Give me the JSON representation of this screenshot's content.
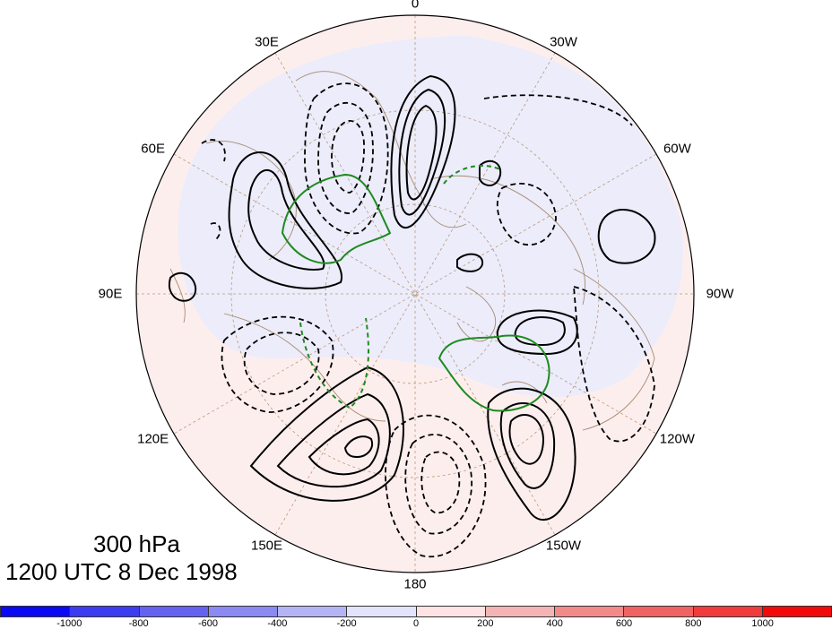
{
  "map": {
    "longitude_labels": [
      {
        "text": "0",
        "deg": 0
      },
      {
        "text": "30W",
        "deg": 30
      },
      {
        "text": "60W",
        "deg": 60
      },
      {
        "text": "90W",
        "deg": 90
      },
      {
        "text": "120W",
        "deg": 120
      },
      {
        "text": "150W",
        "deg": 150
      },
      {
        "text": "180",
        "deg": 180
      },
      {
        "text": "150E",
        "deg": 210
      },
      {
        "text": "120E",
        "deg": 240
      },
      {
        "text": "90E",
        "deg": 270
      },
      {
        "text": "60E",
        "deg": 300
      },
      {
        "text": "30E",
        "deg": 330
      }
    ],
    "caption_level": "300 hPa",
    "caption_time": "1200 UTC 8 Dec 1998"
  },
  "colorbar": {
    "colors": [
      "#0a0af2",
      "#3c3cf0",
      "#6363f0",
      "#8a8af2",
      "#b4b4f5",
      "#e3e3fb",
      "#fde3e3",
      "#f5b4b4",
      "#f28a8a",
      "#f06363",
      "#f03c3c",
      "#f20a0a"
    ],
    "tick_labels": [
      "-1000",
      "-800",
      "-600",
      "-400",
      "-200",
      "0",
      "200",
      "400",
      "600",
      "800",
      "1000"
    ]
  }
}
